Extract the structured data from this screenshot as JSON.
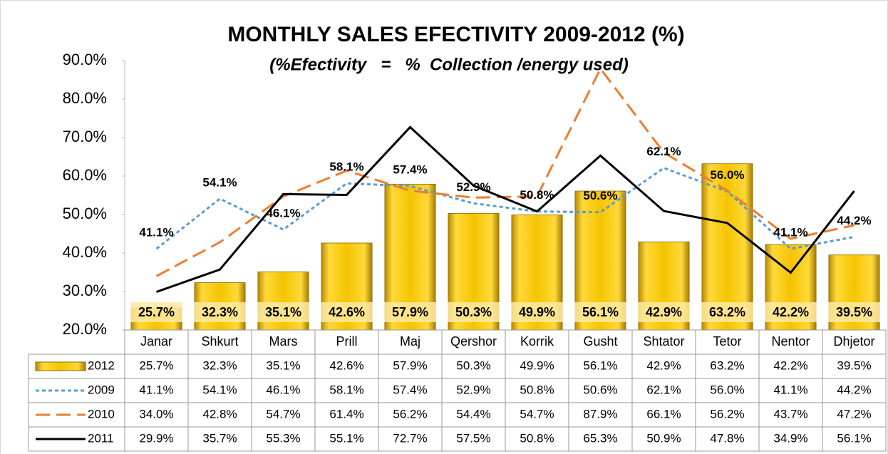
{
  "chart_data": {
    "type": "combo",
    "title": "MONTHLY SALES EFECTIVITY 2009-2012 (%)",
    "subtitle": "(%Efectivity   =   %  Collection /energy used)",
    "categories": [
      "Janar",
      "Shkurt",
      "Mars",
      "Prill",
      "Maj",
      "Qershor",
      "Korrik",
      "Gusht",
      "Shtator",
      "Tetor",
      "Nentor",
      "Dhjetor"
    ],
    "ylim": [
      20,
      90
    ],
    "yticks": [
      {
        "value": 20,
        "label": "20.0%"
      },
      {
        "value": 30,
        "label": "30.0%"
      },
      {
        "value": 40,
        "label": "40.0%"
      },
      {
        "value": 50,
        "label": "50.0%"
      },
      {
        "value": 60,
        "label": "60.0%"
      },
      {
        "value": 70,
        "label": "70.0%"
      },
      {
        "value": 80,
        "label": "80.0%"
      },
      {
        "value": 90,
        "label": "90.0%"
      }
    ],
    "grid": false,
    "data_table": true,
    "series": [
      {
        "name": "2012",
        "type": "bar",
        "color": "#f5c400",
        "data_labels": true,
        "values": [
          25.7,
          32.3,
          35.1,
          42.6,
          57.9,
          50.3,
          49.9,
          56.1,
          42.9,
          63.2,
          42.2,
          39.5
        ],
        "value_labels": [
          "25.7%",
          "32.3%",
          "35.1%",
          "42.6%",
          "57.9%",
          "50.3%",
          "49.9%",
          "56.1%",
          "42.9%",
          "63.2%",
          "42.2%",
          "39.5%"
        ]
      },
      {
        "name": "2009",
        "type": "line",
        "dash": "dotted",
        "color": "#5b9bd5",
        "data_labels": true,
        "values": [
          41.1,
          54.1,
          46.1,
          58.1,
          57.4,
          52.9,
          50.8,
          50.6,
          62.1,
          56,
          41.1,
          44.2
        ],
        "value_labels": [
          "41.1%",
          "54.1%",
          "46.1%",
          "58.1%",
          "57.4%",
          "52.9%",
          "50.8%",
          "50.6%",
          "62.1%",
          "56.0%",
          "41.1%",
          "44.2%"
        ]
      },
      {
        "name": "2010",
        "type": "line",
        "dash": "dashed",
        "color": "#ed7d31",
        "data_labels": false,
        "values": [
          34.0,
          42.8,
          54.7,
          61.4,
          56.2,
          54.4,
          54.7,
          87.9,
          66.1,
          56.2,
          43.7,
          47.2
        ],
        "value_labels": [
          "34.0%",
          "42.8%",
          "54.7%",
          "61.4%",
          "56.2%",
          "54.4%",
          "54.7%",
          "87.9%",
          "66.1%",
          "56.2%",
          "43.7%",
          "47.2%"
        ]
      },
      {
        "name": "2011",
        "type": "line",
        "dash": "solid",
        "color": "#000000",
        "data_labels": false,
        "values": [
          29.9,
          35.7,
          55.3,
          55.1,
          72.7,
          57.5,
          50.8,
          65.3,
          50.9,
          47.8,
          34.9,
          56.1
        ],
        "value_labels": [
          "29.9%",
          "35.7%",
          "55.3%",
          "55.1%",
          "72.7%",
          "57.5%",
          "50.8%",
          "65.3%",
          "50.9%",
          "47.8%",
          "34.9%",
          "56.1%"
        ]
      }
    ]
  }
}
